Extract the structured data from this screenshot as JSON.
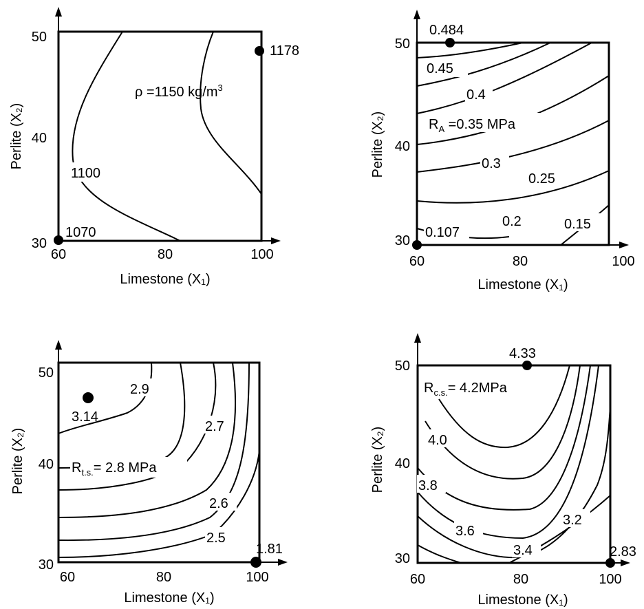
{
  "chart_data": [
    {
      "type": "contour",
      "xlabel": "Limestone (X₁)",
      "ylabel": "Perlite (X₂)",
      "x_ticks": [
        "60",
        "80",
        "100"
      ],
      "y_ticks": [
        "30",
        "40",
        "50"
      ],
      "xlim": [
        60,
        100
      ],
      "ylim": [
        30,
        50
      ],
      "annotation": {
        "text": "ρ =1150 kg/m",
        "sup": "3"
      },
      "contour_labels": [
        "1100",
        "1070",
        "1178"
      ],
      "points": [
        {
          "x": 60,
          "y": 30,
          "label": "1070"
        },
        {
          "x": 100,
          "y": 48.2,
          "label": "1178"
        }
      ]
    },
    {
      "type": "contour",
      "xlabel": "Limestone (X₁)",
      "ylabel": "Perlite (X₂)",
      "x_ticks": [
        "60",
        "80",
        "100"
      ],
      "y_ticks": [
        "30",
        "40",
        "50"
      ],
      "xlim": [
        60,
        100
      ],
      "ylim": [
        30,
        50
      ],
      "annotation": {
        "text": "R",
        "sub": "A",
        "rest": " =0.35  MPa"
      },
      "contour_labels": [
        "0.45",
        "0.4",
        "0.3",
        "0.25",
        "0.2",
        "0.15",
        "0.107",
        "0.484"
      ],
      "points": [
        {
          "x": 66,
          "y": 50,
          "label": "0.484"
        },
        {
          "x": 60,
          "y": 30,
          "label": "0.107"
        }
      ]
    },
    {
      "type": "contour",
      "xlabel": "Limestone (X₁)",
      "ylabel": "Perlite (X₂)",
      "x_ticks": [
        "60",
        "80",
        "100"
      ],
      "y_ticks": [
        "30",
        "40",
        "50"
      ],
      "xlim": [
        60,
        100
      ],
      "ylim": [
        30,
        50
      ],
      "annotation": {
        "text": "R",
        "sub": "t.s.",
        "rest": "= 2.8 MPa"
      },
      "contour_labels": [
        "2.9",
        "2.7",
        "2.6",
        "2.5",
        "3.14",
        "1.81"
      ],
      "points": [
        {
          "x": 64,
          "y": 47,
          "label": "3.14"
        },
        {
          "x": 100,
          "y": 30,
          "label": "1.81"
        }
      ]
    },
    {
      "type": "contour",
      "xlabel": "Limestone (X₁)",
      "ylabel": "Perlite (X₂)",
      "x_ticks": [
        "60",
        "80",
        "100"
      ],
      "y_ticks": [
        "30",
        "40",
        "50"
      ],
      "xlim": [
        60,
        100
      ],
      "ylim": [
        30,
        50
      ],
      "annotation": {
        "text": "R",
        "sub": "c.s.",
        "rest": "= 4.2MPa"
      },
      "contour_labels": [
        "4.0",
        "3.8",
        "3.6",
        "3.4",
        "3.2",
        "4.33",
        "2.83"
      ],
      "points": [
        {
          "x": 78,
          "y": 50,
          "label": "4.33"
        },
        {
          "x": 100,
          "y": 30,
          "label": "2.83"
        }
      ]
    }
  ]
}
